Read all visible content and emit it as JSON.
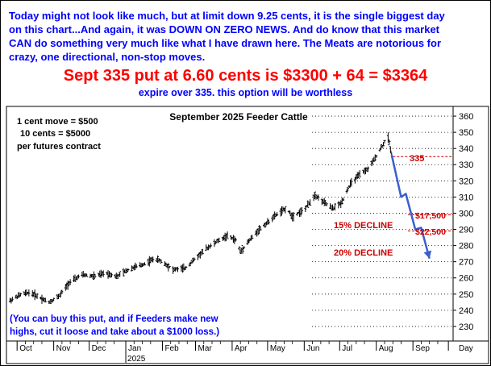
{
  "header": {
    "commentary_lines": [
      "Today might not look like much, but at limit down 9.25 cents, it is the single biggest day",
      "on this chart...And again, it was DOWN ON ZERO NEWS. And do know that this market",
      "CAN do something very much like what I have drawn here. The Meats are notorious for",
      "crazy, one directional, non-stop moves."
    ],
    "headline": "Sept 335 put at 6.60 cents is $3300 + 64 = $3364",
    "subline": "expire over 335. this option will be worthless"
  },
  "colors": {
    "bars": "#000000",
    "projection": "#3a5fcd",
    "annotation_red": "#cc0000",
    "note_blue": "#0000ff"
  },
  "chart_data": {
    "type": "bar",
    "title": "September 2025 Feeder Cattle",
    "info_lines": [
      "1 cent move = $500",
      "10 cents = $5000",
      "per futures contract"
    ],
    "x_tick_labels": [
      "Oct",
      "Nov",
      "Dec",
      "Jan",
      "Feb",
      "Mar",
      "Apr",
      "May",
      "Jun",
      "Jul",
      "Aug",
      "Sep",
      "Day"
    ],
    "year_label": "2025",
    "y_ticks": [
      230,
      240,
      250,
      260,
      270,
      280,
      290,
      300,
      310,
      320,
      330,
      340,
      350,
      360
    ],
    "ylim": [
      221,
      366
    ],
    "price_anchors": [
      {
        "date": "2024-09-25",
        "price": 246
      },
      {
        "date": "2024-10-05",
        "price": 250
      },
      {
        "date": "2024-10-12",
        "price": 251
      },
      {
        "date": "2024-10-20",
        "price": 248
      },
      {
        "date": "2024-10-28",
        "price": 245
      },
      {
        "date": "2024-11-06",
        "price": 249
      },
      {
        "date": "2024-11-14",
        "price": 257
      },
      {
        "date": "2024-11-25",
        "price": 262
      },
      {
        "date": "2024-12-05",
        "price": 261
      },
      {
        "date": "2024-12-15",
        "price": 263
      },
      {
        "date": "2024-12-25",
        "price": 261
      },
      {
        "date": "2025-01-05",
        "price": 266
      },
      {
        "date": "2025-01-15",
        "price": 268
      },
      {
        "date": "2025-01-25",
        "price": 272
      },
      {
        "date": "2025-02-01",
        "price": 270
      },
      {
        "date": "2025-02-10",
        "price": 265
      },
      {
        "date": "2025-02-20",
        "price": 266
      },
      {
        "date": "2025-03-01",
        "price": 272
      },
      {
        "date": "2025-03-10",
        "price": 278
      },
      {
        "date": "2025-03-20",
        "price": 283
      },
      {
        "date": "2025-03-28",
        "price": 286
      },
      {
        "date": "2025-04-05",
        "price": 283
      },
      {
        "date": "2025-04-08",
        "price": 276
      },
      {
        "date": "2025-04-14",
        "price": 282
      },
      {
        "date": "2025-04-24",
        "price": 290
      },
      {
        "date": "2025-05-02",
        "price": 295
      },
      {
        "date": "2025-05-10",
        "price": 300
      },
      {
        "date": "2025-05-17",
        "price": 303
      },
      {
        "date": "2025-05-22",
        "price": 298
      },
      {
        "date": "2025-06-01",
        "price": 302
      },
      {
        "date": "2025-06-10",
        "price": 311
      },
      {
        "date": "2025-06-17",
        "price": 307
      },
      {
        "date": "2025-06-25",
        "price": 303
      },
      {
        "date": "2025-07-02",
        "price": 306
      },
      {
        "date": "2025-07-10",
        "price": 318
      },
      {
        "date": "2025-07-18",
        "price": 324
      },
      {
        "date": "2025-07-26",
        "price": 328
      },
      {
        "date": "2025-08-03",
        "price": 338
      },
      {
        "date": "2025-08-08",
        "price": 344
      },
      {
        "date": "2025-08-11",
        "price": 347
      },
      {
        "date": "2025-08-13",
        "price": 340
      },
      {
        "date": "2025-08-14",
        "price": 336
      }
    ],
    "projection_path": [
      {
        "date": "2025-08-14",
        "price": 336
      },
      {
        "date": "2025-08-22",
        "price": 310
      },
      {
        "date": "2025-08-26",
        "price": 312
      },
      {
        "date": "2025-09-03",
        "price": 290
      },
      {
        "date": "2025-09-08",
        "price": 291
      },
      {
        "date": "2025-09-15",
        "price": 272
      }
    ],
    "strike_line": {
      "price": 335,
      "label": "335"
    },
    "annotations": {
      "decline_15": {
        "label": "15% DECLINE",
        "value": "$17,500",
        "price": 299
      },
      "decline_20": {
        "label": "20% DECLINE",
        "value": "$22,500",
        "price": 289
      }
    },
    "note_lines": [
      "(You can buy this put, and if Feeders make new",
      "highs, cut it loose and take about a $1000 loss.)"
    ]
  }
}
